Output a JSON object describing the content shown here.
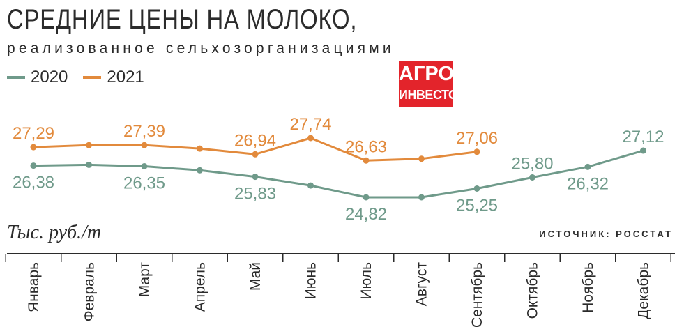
{
  "header": {
    "title": "СРЕДНИЕ ЦЕНЫ НА МОЛОКО,",
    "subtitle": "реализованное сельхозорганизациями",
    "units": "Тыс. руб./т",
    "source": "ИСТОЧНИК: РОССТАТ"
  },
  "logo": {
    "line1": "АГРО",
    "line2": "ИНВЕСТОР",
    "bg_color": "#e3242b"
  },
  "chart_data": {
    "type": "line",
    "categories": [
      "Январь",
      "Февраль",
      "Март",
      "Апрель",
      "Май",
      "Июнь",
      "Июль",
      "Август",
      "Сентябрь",
      "Октябрь",
      "Ноябрь",
      "Декабрь"
    ],
    "series": [
      {
        "name": "2020",
        "color": "#6f9a8a",
        "values": [
          26.38,
          26.42,
          26.35,
          26.15,
          25.83,
          25.4,
          24.82,
          24.82,
          25.25,
          25.8,
          26.32,
          27.12
        ],
        "labels": [
          "26,38",
          "",
          "26,35",
          "",
          "25,83",
          "",
          "24,82",
          "",
          "25,25",
          "25,80",
          "26,32",
          "27,12"
        ]
      },
      {
        "name": "2021",
        "color": "#e28a3c",
        "values": [
          27.29,
          27.39,
          27.39,
          27.22,
          26.94,
          27.74,
          26.63,
          26.72,
          27.06,
          null,
          null,
          null
        ],
        "labels": [
          "27,29",
          "",
          "27,39",
          "",
          "26,94",
          "27,74",
          "26,63",
          "",
          "27,06",
          "",
          "",
          ""
        ]
      }
    ]
  }
}
